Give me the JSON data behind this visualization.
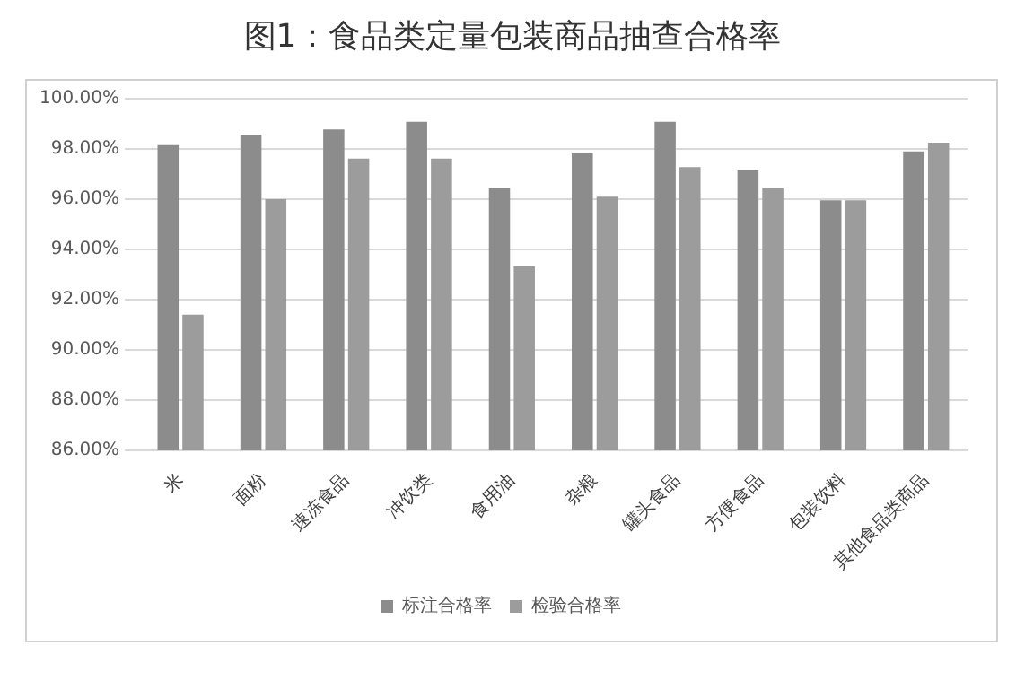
{
  "chart_data": {
    "type": "bar",
    "title": "图1：食品类定量包装商品抽查合格率",
    "categories": [
      "米",
      "面粉",
      "速冻食品",
      "冲饮类",
      "食用油",
      "杂粮",
      "罐头食品",
      "方便食品",
      "包装饮料",
      "其他食品类商品"
    ],
    "series": [
      {
        "name": "标注合格率",
        "color": "#8c8c8c",
        "values": [
          98.15,
          98.57,
          98.78,
          99.08,
          96.45,
          97.83,
          99.08,
          97.14,
          95.96,
          97.9
        ]
      },
      {
        "name": "检验合格率",
        "color": "#9c9c9c",
        "values": [
          91.4,
          96.0,
          97.62,
          97.62,
          93.33,
          96.1,
          97.28,
          96.45,
          95.96,
          98.25
        ]
      }
    ],
    "ylim": [
      86,
      100
    ],
    "yticks": [
      {
        "value": 86,
        "label": "86.00%"
      },
      {
        "value": 88,
        "label": "88.00%"
      },
      {
        "value": 90,
        "label": "90.00%"
      },
      {
        "value": 92,
        "label": "92.00%"
      },
      {
        "value": 94,
        "label": "94.00%"
      },
      {
        "value": 96,
        "label": "96.00%"
      },
      {
        "value": 98,
        "label": "98.00%"
      },
      {
        "value": 100,
        "label": "100.00%"
      }
    ],
    "grid": "y",
    "legend": "bottom"
  }
}
